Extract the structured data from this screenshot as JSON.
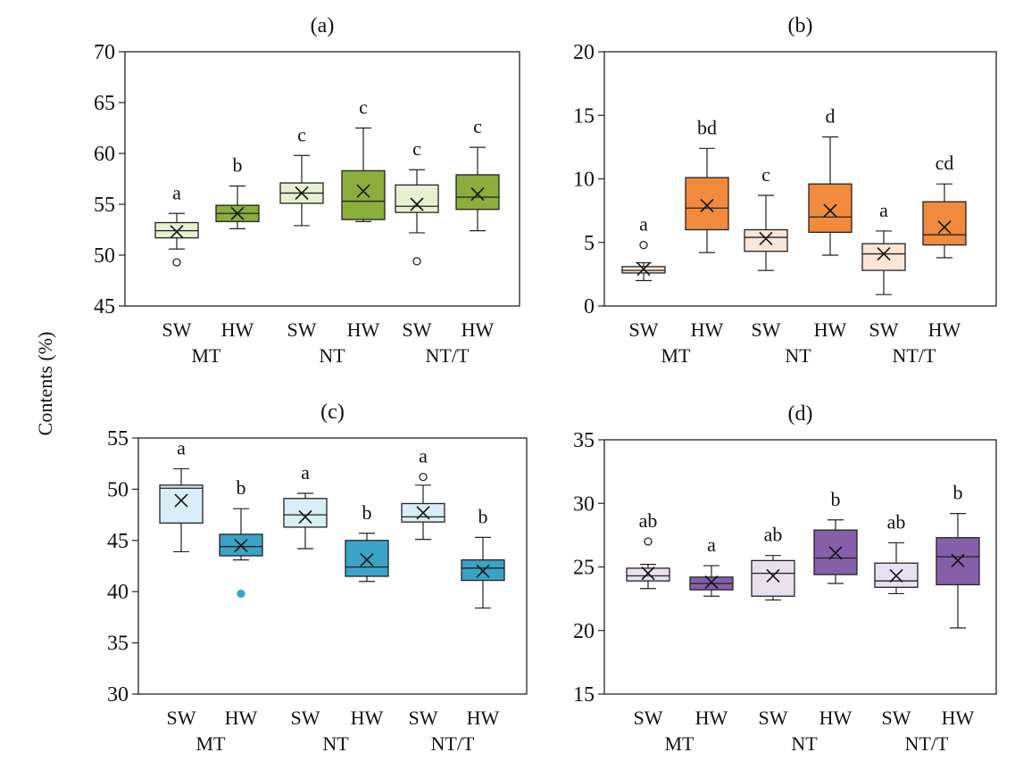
{
  "y_axis_label": "Contents (%)",
  "chart_data": [
    {
      "type": "box",
      "title": "(a)",
      "ylim": [
        45,
        70
      ],
      "yticks": [
        45,
        50,
        55,
        60,
        65,
        70
      ],
      "tick_labels": [
        "SW",
        "HW",
        "SW",
        "HW",
        "SW",
        "HW"
      ],
      "groups": [
        "MT",
        "NT",
        "NT/T"
      ],
      "boxes": [
        {
          "label": "SW",
          "group": "MT",
          "min": 50.6,
          "q1": 51.7,
          "median": 52.4,
          "q3": 53.2,
          "max": 54.1,
          "mean": 52.3,
          "outliers": [
            49.3
          ],
          "letter": "a",
          "color": "#e8f0d2"
        },
        {
          "label": "HW",
          "group": "MT",
          "min": 52.6,
          "q1": 53.3,
          "median": 54.1,
          "q3": 54.9,
          "max": 56.8,
          "mean": 54.1,
          "outliers": [],
          "letter": "b",
          "color": "#8bad3c"
        },
        {
          "label": "SW",
          "group": "NT",
          "min": 52.9,
          "q1": 55.1,
          "median": 56.1,
          "q3": 57.1,
          "max": 59.8,
          "mean": 56.1,
          "outliers": [],
          "letter": "c",
          "color": "#e8f0d2"
        },
        {
          "label": "HW",
          "group": "NT",
          "min": 53.3,
          "q1": 53.5,
          "median": 55.3,
          "q3": 58.3,
          "max": 62.5,
          "mean": 56.3,
          "outliers": [],
          "letter": "c",
          "color": "#8bad3c"
        },
        {
          "label": "SW",
          "group": "NT/T",
          "min": 52.2,
          "q1": 54.2,
          "median": 54.8,
          "q3": 56.9,
          "max": 58.4,
          "mean": 55.0,
          "outliers": [
            49.4
          ],
          "letter": "c",
          "color": "#e8f0d2"
        },
        {
          "label": "HW",
          "group": "NT/T",
          "min": 52.4,
          "q1": 54.5,
          "median": 55.7,
          "q3": 57.9,
          "max": 60.6,
          "mean": 56.0,
          "outliers": [],
          "letter": "c",
          "color": "#8bad3c"
        }
      ]
    },
    {
      "type": "box",
      "title": "(b)",
      "ylim": [
        0,
        20
      ],
      "yticks": [
        0,
        5,
        10,
        15,
        20
      ],
      "tick_labels": [
        "SW",
        "HW",
        "SW",
        "HW",
        "SW",
        "HW"
      ],
      "groups": [
        "MT",
        "NT",
        "NT/T"
      ],
      "boxes": [
        {
          "label": "SW",
          "group": "MT",
          "min": 2.0,
          "q1": 2.6,
          "median": 2.8,
          "q3": 3.1,
          "max": 3.4,
          "mean": 2.9,
          "outliers": [
            4.8
          ],
          "letter": "a",
          "color": "#fbe5d6"
        },
        {
          "label": "HW",
          "group": "MT",
          "min": 4.2,
          "q1": 6.0,
          "median": 7.7,
          "q3": 10.1,
          "max": 12.4,
          "mean": 7.9,
          "outliers": [],
          "letter": "bd",
          "color": "#f08a3c"
        },
        {
          "label": "SW",
          "group": "NT",
          "min": 2.8,
          "q1": 4.3,
          "median": 5.4,
          "q3": 6.0,
          "max": 8.7,
          "mean": 5.3,
          "outliers": [],
          "letter": "c",
          "color": "#fbe5d6"
        },
        {
          "label": "HW",
          "group": "NT",
          "min": 4.0,
          "q1": 5.8,
          "median": 7.0,
          "q3": 9.6,
          "max": 13.3,
          "mean": 7.5,
          "outliers": [],
          "letter": "d",
          "color": "#f08a3c"
        },
        {
          "label": "SW",
          "group": "NT/T",
          "min": 0.9,
          "q1": 2.8,
          "median": 4.1,
          "q3": 4.9,
          "max": 5.9,
          "mean": 4.1,
          "outliers": [],
          "letter": "a",
          "color": "#fbe5d6"
        },
        {
          "label": "HW",
          "group": "NT/T",
          "min": 3.8,
          "q1": 4.8,
          "median": 5.6,
          "q3": 8.2,
          "max": 9.6,
          "mean": 6.2,
          "outliers": [],
          "letter": "cd",
          "color": "#f08a3c"
        }
      ]
    },
    {
      "type": "box",
      "title": "(c)",
      "ylim": [
        30,
        55
      ],
      "yticks": [
        30,
        35,
        40,
        45,
        50,
        55
      ],
      "tick_labels": [
        "SW",
        "HW",
        "SW",
        "HW",
        "SW",
        "HW"
      ],
      "groups": [
        "MT",
        "NT",
        "NT/T"
      ],
      "boxes": [
        {
          "label": "SW",
          "group": "MT",
          "min": 43.9,
          "q1": 46.7,
          "median": 50.1,
          "q3": 50.4,
          "max": 52.0,
          "mean": 48.9,
          "outliers": [],
          "letter": "a",
          "color": "#d9eef6"
        },
        {
          "label": "HW",
          "group": "MT",
          "min": 43.1,
          "q1": 43.5,
          "median": 44.4,
          "q3": 45.6,
          "max": 48.1,
          "mean": 44.5,
          "outliers": [
            39.8
          ],
          "letter": "b",
          "color": "#3aa4c6"
        },
        {
          "label": "SW",
          "group": "NT",
          "min": 44.2,
          "q1": 46.3,
          "median": 47.5,
          "q3": 49.1,
          "max": 49.6,
          "mean": 47.3,
          "outliers": [],
          "letter": "a",
          "color": "#d9eef6"
        },
        {
          "label": "HW",
          "group": "NT",
          "min": 41.0,
          "q1": 41.5,
          "median": 42.4,
          "q3": 45.0,
          "max": 45.7,
          "mean": 43.1,
          "outliers": [],
          "letter": "b",
          "color": "#3aa4c6"
        },
        {
          "label": "SW",
          "group": "NT/T",
          "min": 45.1,
          "q1": 46.8,
          "median": 47.3,
          "q3": 48.6,
          "max": 50.4,
          "mean": 47.7,
          "outliers": [
            51.2
          ],
          "letter": "a",
          "color": "#d9eef6"
        },
        {
          "label": "HW",
          "group": "NT/T",
          "min": 38.4,
          "q1": 41.1,
          "median": 42.3,
          "q3": 43.1,
          "max": 45.3,
          "mean": 42.0,
          "outliers": [],
          "letter": "b",
          "color": "#3aa4c6"
        }
      ]
    },
    {
      "type": "box",
      "title": "(d)",
      "ylim": [
        15,
        35
      ],
      "yticks": [
        15,
        20,
        25,
        30,
        35
      ],
      "tick_labels": [
        "SW",
        "HW",
        "SW",
        "HW",
        "SW",
        "HW"
      ],
      "groups": [
        "MT",
        "NT",
        "NT/T"
      ],
      "boxes": [
        {
          "label": "SW",
          "group": "MT",
          "min": 23.3,
          "q1": 23.9,
          "median": 24.3,
          "q3": 24.9,
          "max": 25.2,
          "mean": 24.5,
          "outliers": [
            27.0
          ],
          "letter": "ab",
          "color": "#e8e0ef"
        },
        {
          "label": "HW",
          "group": "MT",
          "min": 22.7,
          "q1": 23.2,
          "median": 23.7,
          "q3": 24.2,
          "max": 25.1,
          "mean": 23.8,
          "outliers": [],
          "letter": "a",
          "color": "#8560a8"
        },
        {
          "label": "SW",
          "group": "NT",
          "min": 22.4,
          "q1": 22.7,
          "median": 24.5,
          "q3": 25.5,
          "max": 25.9,
          "mean": 24.3,
          "outliers": [],
          "letter": "ab",
          "color": "#e8e0ef"
        },
        {
          "label": "HW",
          "group": "NT",
          "min": 23.7,
          "q1": 24.4,
          "median": 25.7,
          "q3": 27.9,
          "max": 28.7,
          "mean": 26.1,
          "outliers": [],
          "letter": "b",
          "color": "#8560a8"
        },
        {
          "label": "SW",
          "group": "NT/T",
          "min": 22.9,
          "q1": 23.4,
          "median": 23.9,
          "q3": 25.3,
          "max": 26.9,
          "mean": 24.3,
          "outliers": [],
          "letter": "ab",
          "color": "#e8e0ef"
        },
        {
          "label": "HW",
          "group": "NT/T",
          "min": 20.2,
          "q1": 23.6,
          "median": 25.8,
          "q3": 27.3,
          "max": 29.2,
          "mean": 25.5,
          "outliers": [],
          "letter": "b",
          "color": "#8560a8"
        }
      ]
    }
  ]
}
